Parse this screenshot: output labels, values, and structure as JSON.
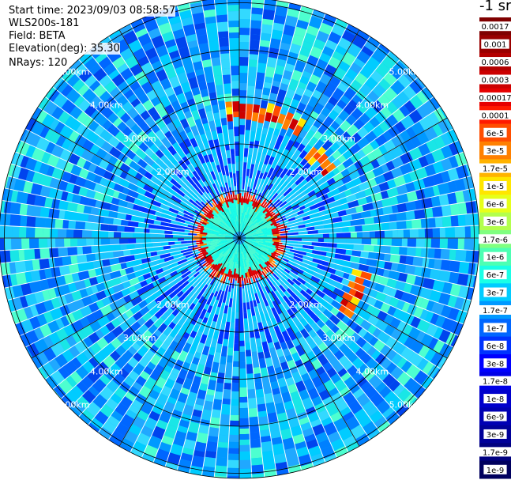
{
  "header": {
    "start_time": "Start time: 2023/09/03 08:58:57",
    "device": "WLS200s-181",
    "field": "Field: BETA",
    "elevation": "Elevation(deg): 35.30",
    "nrays": "NRays: 120"
  },
  "colorbar": {
    "unit_label": "-1 sr",
    "labels": [
      "0.0017",
      "0.001",
      "0.0006",
      "0.0003",
      "0.00017",
      "0.0001",
      "6e-5",
      "3e-5",
      "1.7e-5",
      "1e-5",
      "6e-6",
      "3e-6",
      "1.7e-6",
      "1e-6",
      "6e-7",
      "3e-7",
      "1.7e-7",
      "1e-7",
      "6e-8",
      "3e-8",
      "1.7e-8",
      "1e-8",
      "6e-9",
      "3e-9",
      "1.7e-9",
      "1e-9"
    ],
    "colors": [
      "#7f0000",
      "#990000",
      "#b30000",
      "#cc0000",
      "#e60000",
      "#ff1a00",
      "#ff4d00",
      "#ff8000",
      "#ffb300",
      "#ffe600",
      "#e6ff1a",
      "#b3ff4d",
      "#80ff80",
      "#4dffb3",
      "#1affe6",
      "#00ccff",
      "#0099ff",
      "#0066ff",
      "#0033ff",
      "#0000ff",
      "#0000e6",
      "#0000cc",
      "#0000b3",
      "#000099",
      "#000080",
      "#00005e"
    ]
  },
  "chart_data": {
    "type": "heatmap",
    "title": "",
    "field": "BETA",
    "elevation_deg": 35.3,
    "n_rays": 120,
    "range_rings_km": [
      1,
      2,
      3,
      4,
      5
    ],
    "ring_labels": [
      "2.00km",
      "3.00km",
      "4.00km",
      "5.00km"
    ],
    "radial_spokes": 12,
    "background_level": "1e-7 to 1e-8",
    "features": [
      {
        "name": "near-field ring",
        "range_km": 0.85,
        "value": "1e-4 to 6e-5"
      },
      {
        "name": "NE arc",
        "range_km": 2.7,
        "azimuth_deg": [
          -5,
          30
        ],
        "value": "1e-4"
      },
      {
        "name": "E arc",
        "range_km": 2.4,
        "azimuth_deg": [
          40,
          55
        ],
        "value": "3e-5"
      },
      {
        "name": "ESE arc",
        "range_km": 2.7,
        "azimuth_deg": [
          105,
          125
        ],
        "value": "1e-4"
      }
    ]
  }
}
